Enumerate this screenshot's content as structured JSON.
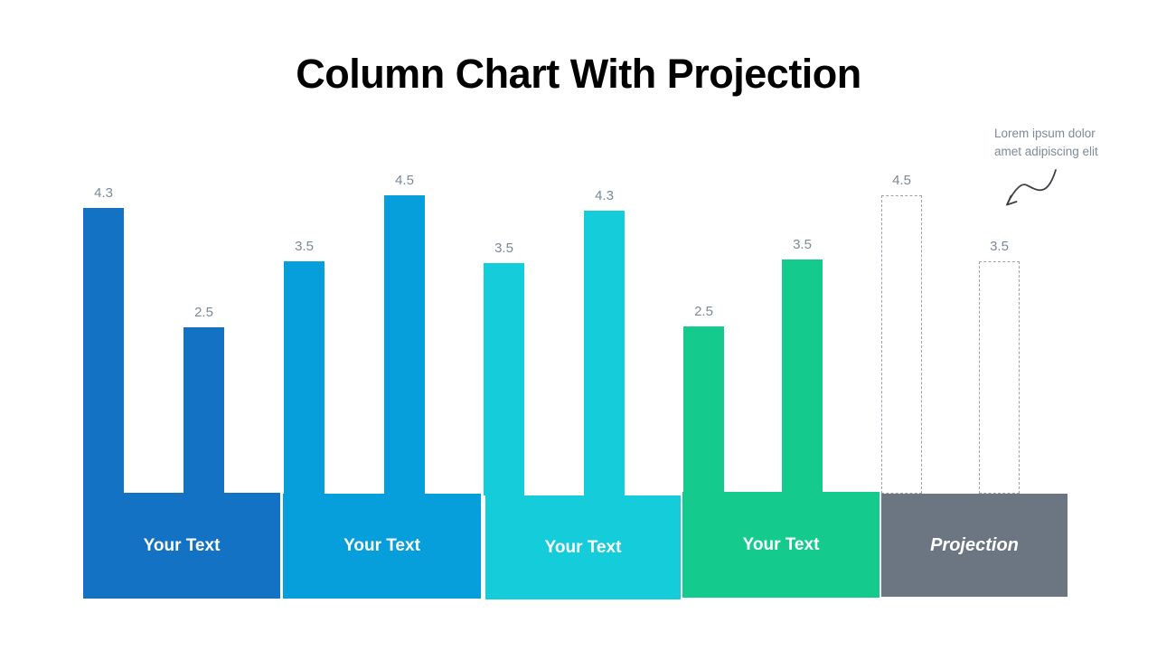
{
  "slide": {
    "title": "Column Chart With Projection",
    "annotation": {
      "line1": "Lorem ipsum dolor",
      "line2": "amet adipiscing elit"
    }
  },
  "chart_data": {
    "type": "bar",
    "title": "Column Chart With Projection",
    "ylim": [
      0,
      5
    ],
    "grid": false,
    "value_labels": true,
    "legend": "none",
    "annotation": "Lorem ipsum dolor amet adipiscing elit (points to projection bars)",
    "groups": [
      {
        "label": "Your Text",
        "style": "solid",
        "color": "#1372C4",
        "values": [
          4.3,
          2.5
        ]
      },
      {
        "label": "Your Text",
        "style": "solid",
        "color": "#069EDB",
        "values": [
          3.5,
          4.5
        ]
      },
      {
        "label": "Your Text",
        "style": "solid",
        "color": "#14CCDA",
        "values": [
          3.5,
          4.3
        ]
      },
      {
        "label": "Your Text",
        "style": "solid",
        "color": "#14CB8D",
        "values": [
          2.5,
          3.5
        ]
      },
      {
        "label": "Projection",
        "style": "dashed",
        "color": "#6C7682",
        "dash_border_color": "#9AA2AD",
        "values": [
          4.5,
          3.5
        ]
      }
    ]
  },
  "colors": {
    "background": "#FFFFFF",
    "title_text": "#000000",
    "value_label": "#7C8897",
    "annotation_text": "#7E8A99",
    "arrow": "#3A4046",
    "band_label_text": "#FFFFFF"
  }
}
